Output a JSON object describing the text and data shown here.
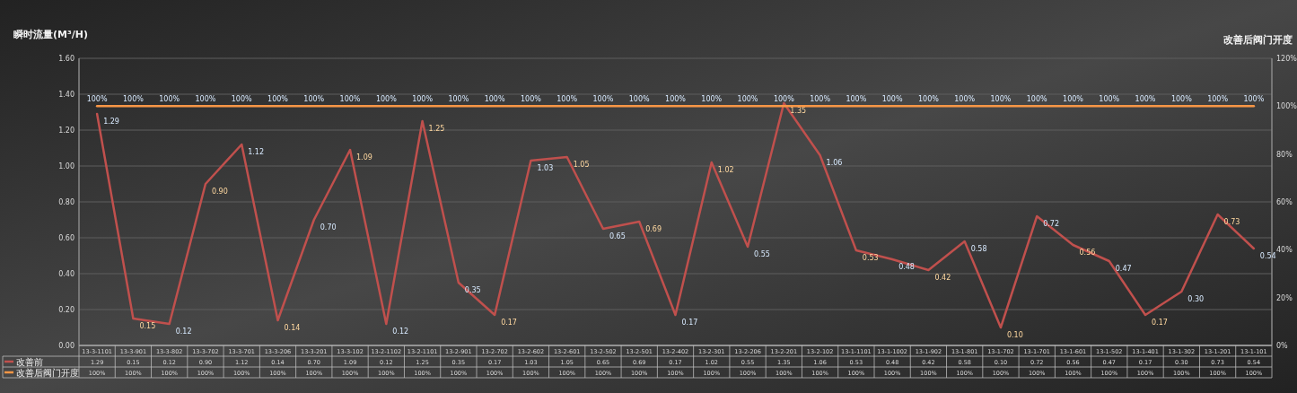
{
  "chart_data": {
    "type": "line",
    "ylabel": "瞬时流量(M³/H)",
    "y2label": "改善后阀门开度",
    "categories": [
      "13-3-1101",
      "13-3-901",
      "13-3-802",
      "13-3-702",
      "13-3-701",
      "13-3-206",
      "13-3-201",
      "13-3-102",
      "13-2-1102",
      "13-2-1101",
      "13-2-901",
      "13-2-702",
      "13-2-602",
      "13-2-601",
      "13-2-502",
      "13-2-501",
      "13-2-402",
      "13-2-301",
      "13-2-206",
      "13-2-201",
      "13-2-102",
      "13-1-1101",
      "13-1-1002",
      "13-1-902",
      "13-1-801",
      "13-1-702",
      "13-1-701",
      "13-1-601",
      "13-1-502",
      "13-1-401",
      "13-1-302",
      "13-1-201",
      "13-1-101"
    ],
    "series": [
      {
        "name": "改善前",
        "color": "#c0504d",
        "values": [
          1.29,
          0.15,
          0.12,
          0.9,
          1.12,
          0.14,
          0.7,
          1.09,
          0.12,
          1.25,
          0.35,
          0.17,
          1.03,
          1.05,
          0.65,
          0.69,
          0.17,
          1.02,
          0.55,
          1.35,
          1.06,
          0.53,
          0.48,
          0.42,
          0.58,
          0.1,
          0.72,
          0.56,
          0.47,
          0.17,
          0.3,
          0.73,
          0.54
        ],
        "value_labels": [
          "1.29",
          "0.15",
          "0.12",
          "0.90",
          "1.12",
          "0.14",
          "0.70",
          "1.09",
          "0.12",
          "1.25",
          "0.35",
          "0.17",
          "1.03",
          "1.05",
          "0.65",
          "0.69",
          "0.17",
          "1.02",
          "0.55",
          "1.35",
          "1.06",
          "0.53",
          "0.48",
          "0.42",
          "0.58",
          "0.10",
          "0.72",
          "0.56",
          "0.47",
          "0.17",
          "0.30",
          "0.73",
          "0.54"
        ]
      },
      {
        "name": "改善后阀门开度",
        "color": "#f79646",
        "axis": "y2",
        "values": [
          100,
          100,
          100,
          100,
          100,
          100,
          100,
          100,
          100,
          100,
          100,
          100,
          100,
          100,
          100,
          100,
          100,
          100,
          100,
          100,
          100,
          100,
          100,
          100,
          100,
          100,
          100,
          100,
          100,
          100,
          100,
          100,
          100
        ],
        "value_labels": [
          "100%",
          "100%",
          "100%",
          "100%",
          "100%",
          "100%",
          "100%",
          "100%",
          "100%",
          "100%",
          "100%",
          "100%",
          "100%",
          "100%",
          "100%",
          "100%",
          "100%",
          "100%",
          "100%",
          "100%",
          "100%",
          "100%",
          "100%",
          "100%",
          "100%",
          "100%",
          "100%",
          "100%",
          "100%",
          "100%",
          "100%",
          "100%",
          "100%"
        ]
      }
    ],
    "ylim": [
      0,
      1.6
    ],
    "yticks": [
      {
        "value": 0,
        "label": "0.00"
      },
      {
        "value": 0.2,
        "label": "0.20"
      },
      {
        "value": 0.4,
        "label": "0.40"
      },
      {
        "value": 0.6,
        "label": "0.60"
      },
      {
        "value": 0.8,
        "label": "0.80"
      },
      {
        "value": 1.0,
        "label": "1.00"
      },
      {
        "value": 1.2,
        "label": "1.20"
      },
      {
        "value": 1.4,
        "label": "1.40"
      },
      {
        "value": 1.6,
        "label": "1.60"
      }
    ],
    "y2lim": [
      0,
      120
    ],
    "y2ticks": [
      {
        "value": 0,
        "label": "0%"
      },
      {
        "value": 20,
        "label": "20%"
      },
      {
        "value": 40,
        "label": "40%"
      },
      {
        "value": 60,
        "label": "60%"
      },
      {
        "value": 80,
        "label": "80%"
      },
      {
        "value": 100,
        "label": "100%"
      },
      {
        "value": 120,
        "label": "120%"
      }
    ],
    "grid": "y",
    "legend": "bottom"
  }
}
